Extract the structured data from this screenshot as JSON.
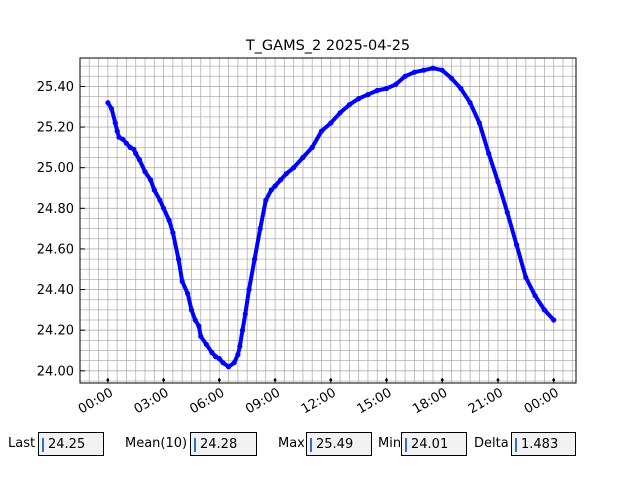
{
  "chart_data": {
    "type": "line",
    "title": "T_GAMS_2 2025-04-25",
    "xlabel": "",
    "ylabel": "",
    "x_tick_labels": [
      "00:00",
      "03:00",
      "06:00",
      "09:00",
      "12:00",
      "15:00",
      "18:00",
      "21:00",
      "00:00"
    ],
    "x_tick_hours": [
      0,
      3,
      6,
      9,
      12,
      15,
      18,
      21,
      24
    ],
    "xlim_hours": [
      -1.5,
      25.2
    ],
    "y_tick_labels": [
      "24.00",
      "24.20",
      "24.40",
      "24.60",
      "24.80",
      "25.00",
      "25.20",
      "25.40"
    ],
    "y_ticks": [
      24.0,
      24.2,
      24.4,
      24.6,
      24.8,
      25.0,
      25.2,
      25.4
    ],
    "ylim": [
      23.94,
      25.54
    ],
    "grid": true,
    "color": "#0000ff",
    "series": [
      {
        "x_hours": [
          0.0,
          0.2,
          0.4,
          0.5,
          0.6,
          0.8,
          1.0,
          1.2,
          1.4,
          1.5,
          1.7,
          2.0,
          2.3,
          2.5,
          2.8,
          3.0,
          3.3,
          3.5,
          3.8,
          4.0,
          4.3,
          4.5,
          4.7,
          4.9,
          5.0,
          5.3,
          5.6,
          5.8,
          6.0,
          6.2,
          6.5,
          6.8,
          7.0,
          7.1,
          7.25,
          7.4,
          7.6,
          7.9,
          8.2,
          8.5,
          8.8,
          9.0,
          9.3,
          9.6,
          10.0,
          10.5,
          11.0,
          11.5,
          12.0,
          12.5,
          13.0,
          13.5,
          14.0,
          14.5,
          15.0,
          15.5,
          16.0,
          16.5,
          17.0,
          17.5,
          18.0,
          18.5,
          19.0,
          19.5,
          20.0,
          20.5,
          21.0,
          21.5,
          22.0,
          22.5,
          23.0,
          23.5,
          24.0
        ],
        "y": [
          25.32,
          25.29,
          25.22,
          25.18,
          25.15,
          25.14,
          25.12,
          25.1,
          25.09,
          25.07,
          25.04,
          24.98,
          24.94,
          24.89,
          24.84,
          24.8,
          24.74,
          24.68,
          24.55,
          24.44,
          24.38,
          24.3,
          24.25,
          24.22,
          24.17,
          24.13,
          24.09,
          24.07,
          24.06,
          24.04,
          24.02,
          24.04,
          24.08,
          24.12,
          24.2,
          24.28,
          24.4,
          24.55,
          24.7,
          24.84,
          24.89,
          24.91,
          24.94,
          24.97,
          25.0,
          25.05,
          25.1,
          25.18,
          25.22,
          25.27,
          25.31,
          25.34,
          25.36,
          25.38,
          25.39,
          25.41,
          25.45,
          25.47,
          25.48,
          25.49,
          25.48,
          25.44,
          25.39,
          25.32,
          25.22,
          25.07,
          24.93,
          24.78,
          24.62,
          24.46,
          24.37,
          24.3,
          24.25
        ]
      }
    ]
  },
  "stats": {
    "last_label": "Last",
    "last_value": "24.25",
    "mean_label": "Mean(10)",
    "mean_value": "24.28",
    "max_label": "Max",
    "max_value": "25.49",
    "min_label": "Min",
    "min_value": "24.01",
    "delta_label": "Delta",
    "delta_value": "1.483"
  }
}
